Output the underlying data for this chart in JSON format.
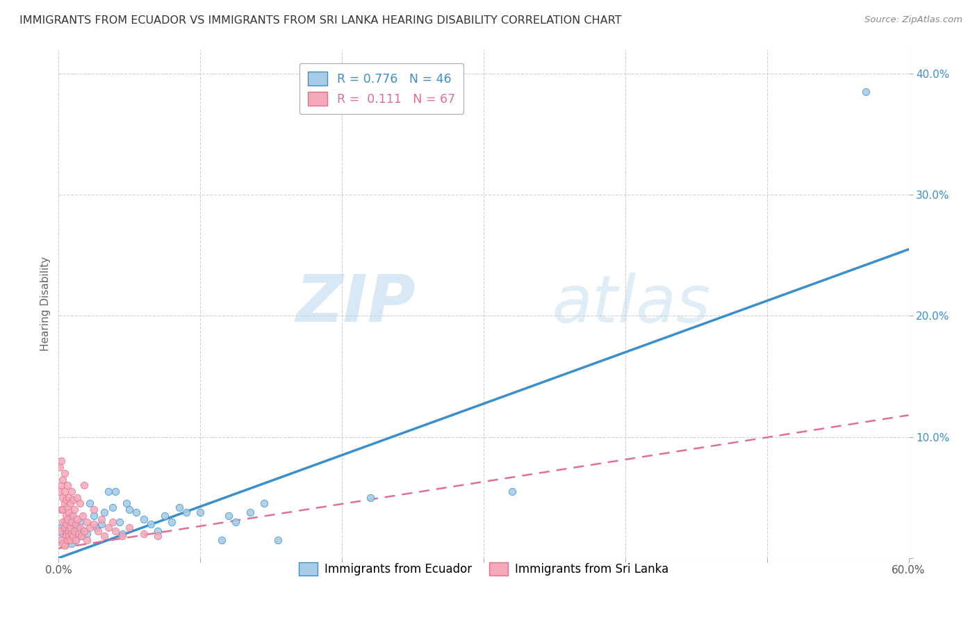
{
  "title": "IMMIGRANTS FROM ECUADOR VS IMMIGRANTS FROM SRI LANKA HEARING DISABILITY CORRELATION CHART",
  "source": "Source: ZipAtlas.com",
  "ylabel": "Hearing Disability",
  "xlim": [
    0,
    0.6
  ],
  "ylim": [
    0,
    0.42
  ],
  "xticks": [
    0.0,
    0.1,
    0.2,
    0.3,
    0.4,
    0.5,
    0.6
  ],
  "yticks": [
    0.0,
    0.1,
    0.2,
    0.3,
    0.4
  ],
  "ecuador_color": "#A8CCE8",
  "srilanka_color": "#F4A8B8",
  "ecuador_R": 0.776,
  "ecuador_N": 46,
  "srilanka_R": 0.111,
  "srilanka_N": 67,
  "ecuador_line_color": "#3A8FCA",
  "srilanka_line_color": "#E07090",
  "watermark_zip": "ZIP",
  "watermark_atlas": "atlas",
  "legend_ecuador_label": "Immigrants from Ecuador",
  "legend_srilanka_label": "Immigrants from Sri Lanka",
  "ecuador_line_x": [
    0.0,
    0.6
  ],
  "ecuador_line_y": [
    0.0,
    0.255
  ],
  "srilanka_line_x": [
    0.0,
    0.6
  ],
  "srilanka_line_y": [
    0.008,
    0.118
  ],
  "ecuador_scatter": [
    [
      0.002,
      0.025
    ],
    [
      0.003,
      0.02
    ],
    [
      0.004,
      0.03
    ],
    [
      0.005,
      0.022
    ],
    [
      0.006,
      0.015
    ],
    [
      0.007,
      0.018
    ],
    [
      0.008,
      0.035
    ],
    [
      0.009,
      0.012
    ],
    [
      0.01,
      0.028
    ],
    [
      0.011,
      0.02
    ],
    [
      0.012,
      0.015
    ],
    [
      0.013,
      0.025
    ],
    [
      0.015,
      0.03
    ],
    [
      0.016,
      0.018
    ],
    [
      0.018,
      0.022
    ],
    [
      0.02,
      0.02
    ],
    [
      0.022,
      0.045
    ],
    [
      0.025,
      0.035
    ],
    [
      0.027,
      0.025
    ],
    [
      0.03,
      0.028
    ],
    [
      0.032,
      0.038
    ],
    [
      0.035,
      0.055
    ],
    [
      0.038,
      0.042
    ],
    [
      0.04,
      0.055
    ],
    [
      0.043,
      0.03
    ],
    [
      0.045,
      0.02
    ],
    [
      0.048,
      0.045
    ],
    [
      0.05,
      0.04
    ],
    [
      0.055,
      0.038
    ],
    [
      0.06,
      0.032
    ],
    [
      0.065,
      0.028
    ],
    [
      0.07,
      0.022
    ],
    [
      0.075,
      0.035
    ],
    [
      0.08,
      0.03
    ],
    [
      0.085,
      0.042
    ],
    [
      0.09,
      0.038
    ],
    [
      0.1,
      0.038
    ],
    [
      0.115,
      0.015
    ],
    [
      0.12,
      0.035
    ],
    [
      0.125,
      0.03
    ],
    [
      0.135,
      0.038
    ],
    [
      0.145,
      0.045
    ],
    [
      0.155,
      0.015
    ],
    [
      0.22,
      0.05
    ],
    [
      0.32,
      0.055
    ],
    [
      0.57,
      0.385
    ]
  ],
  "srilanka_scatter": [
    [
      0.001,
      0.055
    ],
    [
      0.001,
      0.075
    ],
    [
      0.001,
      0.022
    ],
    [
      0.002,
      0.04
    ],
    [
      0.002,
      0.06
    ],
    [
      0.002,
      0.015
    ],
    [
      0.002,
      0.08
    ],
    [
      0.003,
      0.03
    ],
    [
      0.003,
      0.05
    ],
    [
      0.003,
      0.012
    ],
    [
      0.003,
      0.065
    ],
    [
      0.003,
      0.04
    ],
    [
      0.004,
      0.025
    ],
    [
      0.004,
      0.045
    ],
    [
      0.004,
      0.01
    ],
    [
      0.004,
      0.055
    ],
    [
      0.004,
      0.07
    ],
    [
      0.005,
      0.02
    ],
    [
      0.005,
      0.035
    ],
    [
      0.005,
      0.018
    ],
    [
      0.005,
      0.048
    ],
    [
      0.005,
      0.028
    ],
    [
      0.006,
      0.015
    ],
    [
      0.006,
      0.032
    ],
    [
      0.006,
      0.06
    ],
    [
      0.006,
      0.042
    ],
    [
      0.007,
      0.022
    ],
    [
      0.007,
      0.038
    ],
    [
      0.007,
      0.018
    ],
    [
      0.007,
      0.05
    ],
    [
      0.008,
      0.025
    ],
    [
      0.008,
      0.045
    ],
    [
      0.008,
      0.015
    ],
    [
      0.009,
      0.03
    ],
    [
      0.009,
      0.055
    ],
    [
      0.009,
      0.02
    ],
    [
      0.01,
      0.018
    ],
    [
      0.01,
      0.035
    ],
    [
      0.01,
      0.048
    ],
    [
      0.011,
      0.022
    ],
    [
      0.011,
      0.04
    ],
    [
      0.012,
      0.028
    ],
    [
      0.012,
      0.015
    ],
    [
      0.013,
      0.032
    ],
    [
      0.013,
      0.05
    ],
    [
      0.014,
      0.02
    ],
    [
      0.015,
      0.025
    ],
    [
      0.015,
      0.045
    ],
    [
      0.016,
      0.018
    ],
    [
      0.017,
      0.035
    ],
    [
      0.018,
      0.022
    ],
    [
      0.018,
      0.06
    ],
    [
      0.02,
      0.03
    ],
    [
      0.02,
      0.015
    ],
    [
      0.022,
      0.025
    ],
    [
      0.025,
      0.028
    ],
    [
      0.025,
      0.04
    ],
    [
      0.028,
      0.022
    ],
    [
      0.03,
      0.032
    ],
    [
      0.032,
      0.018
    ],
    [
      0.035,
      0.025
    ],
    [
      0.038,
      0.03
    ],
    [
      0.04,
      0.022
    ],
    [
      0.045,
      0.018
    ],
    [
      0.05,
      0.025
    ],
    [
      0.06,
      0.02
    ],
    [
      0.07,
      0.018
    ]
  ]
}
